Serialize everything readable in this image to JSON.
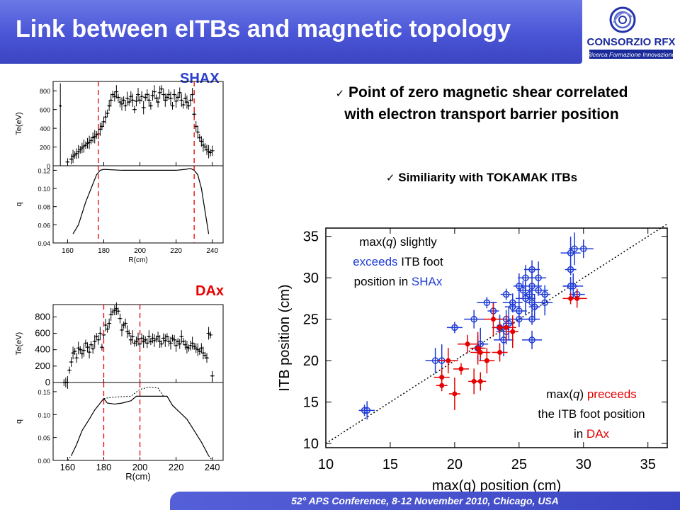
{
  "header": {
    "title": "Link between eITBs and magnetic topology",
    "logo": {
      "name": "CONSORZIO RFX",
      "subtitle": "Ricerca Formazione Innovazione",
      "icon": "rfx-swirl-logo"
    }
  },
  "labels": {
    "shax": "SHAX",
    "dax": "DAx"
  },
  "bullets": [
    {
      "icon": "checkmark-icon",
      "text": "Point of zero magnetic shear correlated with electron transport barrier position"
    },
    {
      "icon": "checkmark-icon",
      "text": "Similiarity with TOKAMAK ITBs"
    }
  ],
  "footer": {
    "text": "52° APS Conference, 8-12 November 2010, Chicago, USA"
  },
  "colors": {
    "title_bar": "#4a55d6",
    "shax": "#1f3bd6",
    "dax": "#e60000",
    "tag_shax": "#2a3fd0"
  },
  "chart_data": [
    {
      "id": "shax-te",
      "type": "scatter",
      "ylabel": "Te(eV)",
      "ylim": [
        0,
        900
      ],
      "yticks": [
        "0",
        "200",
        "400",
        "600",
        "800"
      ],
      "xlim": [
        152,
        246
      ],
      "x": [
        160,
        162,
        163,
        164,
        165,
        166,
        167,
        168,
        169,
        170,
        171,
        172,
        173,
        174,
        175,
        176,
        177,
        178,
        179,
        180,
        181,
        182,
        183,
        184,
        185,
        186,
        187,
        188,
        189,
        190,
        191,
        192,
        193,
        194,
        195,
        196,
        197,
        198,
        199,
        200,
        201,
        202,
        203,
        204,
        205,
        206,
        207,
        208,
        209,
        210,
        211,
        212,
        213,
        214,
        215,
        216,
        217,
        218,
        219,
        220,
        221,
        222,
        223,
        224,
        225,
        226,
        227,
        228,
        229,
        230,
        231,
        232,
        233,
        234,
        235,
        236,
        237,
        238,
        239,
        240
      ],
      "y": [
        40,
        70,
        100,
        115,
        130,
        150,
        170,
        190,
        210,
        220,
        240,
        250,
        270,
        300,
        310,
        330,
        340,
        390,
        420,
        470,
        520,
        560,
        640,
        700,
        760,
        740,
        790,
        730,
        680,
        660,
        700,
        640,
        720,
        680,
        740,
        700,
        600,
        690,
        760,
        700,
        740,
        620,
        730,
        760,
        700,
        640,
        750,
        790,
        720,
        680,
        780,
        820,
        760,
        700,
        730,
        760,
        720,
        640,
        760,
        690,
        730,
        780,
        700,
        650,
        720,
        680,
        640,
        700,
        760,
        550,
        420,
        360,
        300,
        260,
        220,
        200,
        170,
        150,
        140,
        160
      ],
      "vlines": [
        177,
        230
      ]
    },
    {
      "id": "shax-q",
      "type": "line",
      "ylabel": "q",
      "xlabel": "R(cm)",
      "ylim": [
        0.04,
        0.125
      ],
      "yticks": [
        "0.04",
        "0.06",
        "0.08",
        "0.10",
        "0.12"
      ],
      "xticks": [
        "160",
        "180",
        "200",
        "220",
        "240"
      ],
      "xlim": [
        152,
        246
      ],
      "x": [
        163,
        166,
        170,
        174,
        176,
        178,
        180,
        190,
        200,
        210,
        220,
        225,
        228,
        230,
        232,
        234,
        236,
        238
      ],
      "y": [
        0.05,
        0.06,
        0.085,
        0.105,
        0.115,
        0.12,
        0.121,
        0.12,
        0.12,
        0.12,
        0.12,
        0.121,
        0.122,
        0.12,
        0.115,
        0.1,
        0.075,
        0.05
      ],
      "vlines": [
        177,
        230
      ]
    },
    {
      "id": "dax-te",
      "type": "scatter",
      "ylabel": "Te(eV)",
      "ylim": [
        0,
        950
      ],
      "yticks": [
        "0",
        "200",
        "400",
        "600",
        "800"
      ],
      "xlim": [
        152,
        246
      ],
      "x": [
        158,
        159,
        160,
        161,
        162,
        163,
        164,
        165,
        166,
        167,
        168,
        169,
        170,
        171,
        172,
        173,
        174,
        175,
        176,
        177,
        178,
        179,
        180,
        181,
        182,
        183,
        184,
        185,
        186,
        187,
        188,
        189,
        190,
        191,
        192,
        193,
        194,
        195,
        196,
        197,
        198,
        199,
        200,
        201,
        202,
        203,
        204,
        205,
        206,
        207,
        208,
        209,
        210,
        211,
        212,
        213,
        214,
        215,
        216,
        217,
        218,
        219,
        220,
        221,
        222,
        223,
        224,
        225,
        226,
        227,
        228,
        229,
        230,
        231,
        232,
        233,
        234,
        235,
        236,
        237,
        238,
        239,
        240
      ],
      "y": [
        0,
        0,
        0,
        150,
        250,
        360,
        380,
        300,
        420,
        400,
        350,
        390,
        480,
        430,
        370,
        460,
        410,
        500,
        560,
        520,
        600,
        430,
        580,
        700,
        650,
        720,
        830,
        860,
        880,
        900,
        870,
        780,
        640,
        700,
        720,
        620,
        600,
        520,
        560,
        480,
        500,
        530,
        470,
        540,
        500,
        520,
        480,
        560,
        500,
        540,
        510,
        530,
        560,
        500,
        470,
        540,
        510,
        560,
        500,
        480,
        540,
        520,
        450,
        500,
        470,
        560,
        500,
        460,
        430,
        420,
        450,
        480,
        440,
        420,
        400,
        380,
        420,
        360,
        330,
        300,
        600,
        580,
        80
      ],
      "vlines": [
        180,
        200
      ]
    },
    {
      "id": "dax-q",
      "type": "line",
      "ylabel": "q",
      "xlabel": "R(cm)",
      "ylim": [
        0,
        0.17
      ],
      "yticks": [
        "0.00",
        "0.05",
        "0.10",
        "0.15"
      ],
      "xticks": [
        "160",
        "180",
        "200",
        "220",
        "240"
      ],
      "xlim": [
        152,
        246
      ],
      "x": [
        162,
        165,
        168,
        172,
        175,
        178,
        180,
        182,
        186,
        190,
        195,
        198,
        200,
        205,
        210,
        213,
        215,
        218,
        222,
        226,
        230,
        234,
        238
      ],
      "y": [
        0.01,
        0.035,
        0.065,
        0.09,
        0.11,
        0.125,
        0.135,
        0.125,
        0.123,
        0.125,
        0.13,
        0.14,
        0.14,
        0.14,
        0.14,
        0.14,
        0.14,
        0.12,
        0.105,
        0.09,
        0.065,
        0.04,
        0.01
      ],
      "dotted_x": [
        180,
        185,
        190,
        195,
        200,
        205,
        210,
        213
      ],
      "dotted_y": [
        0.135,
        0.138,
        0.139,
        0.14,
        0.155,
        0.16,
        0.158,
        0.14
      ],
      "vlines": [
        180,
        200
      ]
    },
    {
      "id": "itb-scatter",
      "type": "scatter",
      "xlabel": "max(q)  position  (cm)",
      "ylabel": "ITB  position  (cm)",
      "xlim": [
        10,
        36.5
      ],
      "ylim": [
        9.5,
        36
      ],
      "xticks": [
        "10",
        "15",
        "20",
        "25",
        "30",
        "35"
      ],
      "yticks": [
        "10",
        "15",
        "20",
        "25",
        "30",
        "35"
      ],
      "annotations": [
        {
          "parts": [
            {
              "t": "max(",
              "c": "#000"
            },
            {
              "t": "q",
              "c": "#000",
              "i": true
            },
            {
              "t": ") slightly",
              "c": "#000"
            }
          ]
        },
        {
          "parts": [
            {
              "t": "exceeds",
              "c": "#1f3bd6"
            },
            {
              "t": " ITB foot",
              "c": "#000"
            }
          ]
        },
        {
          "parts": [
            {
              "t": "position in ",
              "c": "#000"
            },
            {
              "t": "SHAx",
              "c": "#1f3bd6"
            }
          ]
        },
        {
          "parts": [
            {
              "t": "max(",
              "c": "#000"
            },
            {
              "t": "q",
              "c": "#000",
              "i": true
            },
            {
              "t": ") ",
              "c": "#000"
            },
            {
              "t": "preceeds",
              "c": "#e60000"
            }
          ]
        },
        {
          "parts": [
            {
              "t": "the ITB foot position",
              "c": "#000"
            }
          ]
        },
        {
          "parts": [
            {
              "t": "in ",
              "c": "#000"
            },
            {
              "t": "DAx",
              "c": "#e60000"
            }
          ]
        }
      ],
      "series": [
        {
          "name": "SHAx",
          "x": [
            13,
            13.2,
            18.5,
            19,
            20,
            21.5,
            21.8,
            22,
            22.5,
            23,
            23.5,
            23.8,
            24,
            24,
            24,
            24.2,
            24.5,
            24.5,
            25,
            25,
            25,
            25.3,
            25.5,
            25.5,
            25.8,
            26,
            26,
            26,
            26,
            26,
            26.2,
            26.5,
            26.5,
            27,
            27,
            29,
            29,
            29,
            29.2,
            29.3,
            29.5,
            30
          ],
          "y": [
            14,
            14,
            20,
            20,
            24,
            25,
            21.5,
            22,
            27,
            26,
            24,
            22.5,
            28,
            25,
            23.5,
            24.5,
            26.5,
            27,
            29,
            26,
            25,
            28.5,
            30,
            27.5,
            28,
            31,
            29,
            27,
            25,
            22.5,
            26.5,
            30,
            28.5,
            28,
            27,
            33,
            31,
            29,
            29,
            33.5,
            28,
            33.5
          ]
        },
        {
          "name": "DAx",
          "x": [
            19,
            19,
            19.5,
            20,
            20.5,
            21,
            21.5,
            21.8,
            22,
            22,
            22.5,
            23,
            23.5,
            23.5,
            24,
            24.5,
            29,
            29.5
          ],
          "y": [
            17,
            18,
            20,
            16,
            19,
            22,
            17.5,
            21.5,
            21,
            17.5,
            20,
            25,
            24,
            21,
            24,
            23.5,
            27.5,
            27.5
          ]
        }
      ]
    }
  ]
}
